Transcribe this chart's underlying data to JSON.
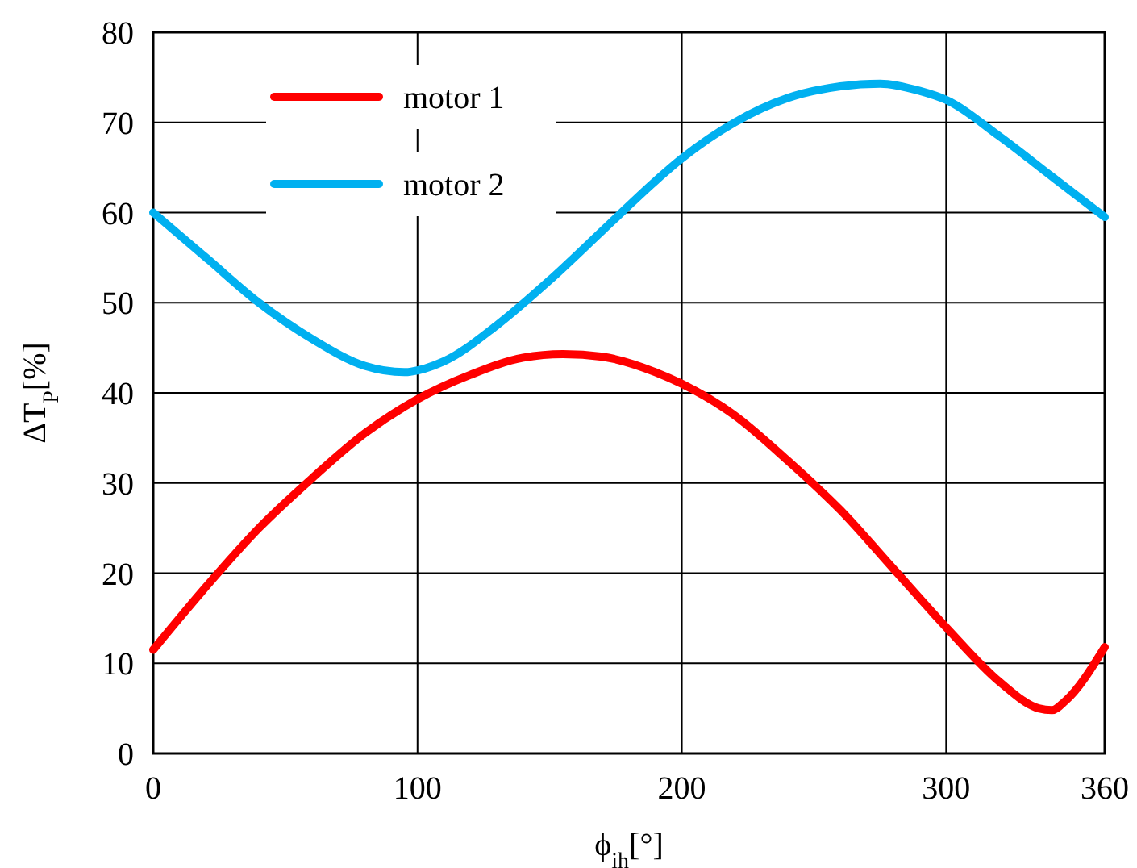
{
  "chart_data": {
    "type": "line",
    "xlabel": "ϕ$_{ih}$[°]",
    "ylabel": "ΔT$_{P}$[%]",
    "xlim": [
      0,
      360
    ],
    "xticks": [
      0,
      100,
      200,
      300,
      360
    ],
    "ylim": [
      0,
      80
    ],
    "yticks": [
      0,
      10,
      20,
      30,
      40,
      50,
      60,
      70,
      80
    ],
    "grid": true,
    "legend": "top left",
    "marker": "none",
    "line_style": "solid",
    "series": [
      {
        "name": "motor 1",
        "color": "#ff0000",
        "x": [
          0,
          20,
          40,
          60,
          80,
          100,
          120,
          140,
          155,
          170,
          190,
          200,
          220,
          240,
          260,
          280,
          300,
          320,
          335,
          340,
          345,
          360
        ],
        "values": [
          11.5,
          18.5,
          25,
          30.5,
          35.5,
          39.3,
          42,
          43.9,
          44.3,
          44,
          42.3,
          41,
          37.5,
          32.5,
          27,
          20.5,
          14,
          8,
          5,
          4.8,
          5.8,
          11.8
        ]
      },
      {
        "name": "motor 2",
        "color": "#00b0f0",
        "x": [
          0,
          20,
          40,
          60,
          80,
          95,
          110,
          130,
          150,
          170,
          190,
          200,
          220,
          240,
          260,
          275,
          290,
          300,
          320,
          340,
          360
        ],
        "values": [
          60,
          55,
          50,
          46,
          43,
          42.3,
          43.5,
          47.5,
          52.5,
          58,
          63.5,
          66,
          70,
          72.7,
          74,
          74.3,
          73.5,
          72.5,
          68.5,
          64,
          59.5
        ]
      }
    ]
  }
}
